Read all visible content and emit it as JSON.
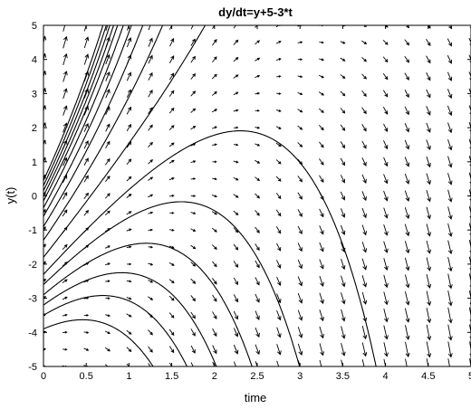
{
  "chart_data": {
    "type": "line",
    "title": "dy/dt=y+5-3*t",
    "xlabel": "time",
    "ylabel": "y(t)",
    "xlim": [
      0,
      5
    ],
    "ylim": [
      -5,
      5
    ],
    "xticks": [
      "0",
      "0.5",
      "1",
      "1.5",
      "2",
      "2.5",
      "3",
      "3.5",
      "4",
      "4.5",
      "5"
    ],
    "yticks": [
      "-5",
      "-4",
      "-3",
      "-2",
      "-1",
      "0",
      "1",
      "2",
      "3",
      "4",
      "5"
    ],
    "grid": false,
    "legend": "none",
    "plot_kind": "direction-field",
    "ode": {
      "dy_dt": "y + 5 - 3*t",
      "coefficient_y": 1,
      "constant": 5,
      "coefficient_t": -3
    },
    "direction_field": {
      "t_steps": 21,
      "y_steps": 21
    },
    "solution_curves": {
      "from_t0": [
        -3.9,
        -3.5,
        -3.2,
        -2.9,
        -2.6,
        -2.3,
        -1.8,
        -1.3,
        -0.9,
        -0.6,
        -0.35,
        -0.15,
        0.0,
        0.15,
        0.3,
        0.45
      ],
      "from_left_edge_y": -5,
      "starts_t": [
        0.15,
        0.35
      ]
    }
  }
}
